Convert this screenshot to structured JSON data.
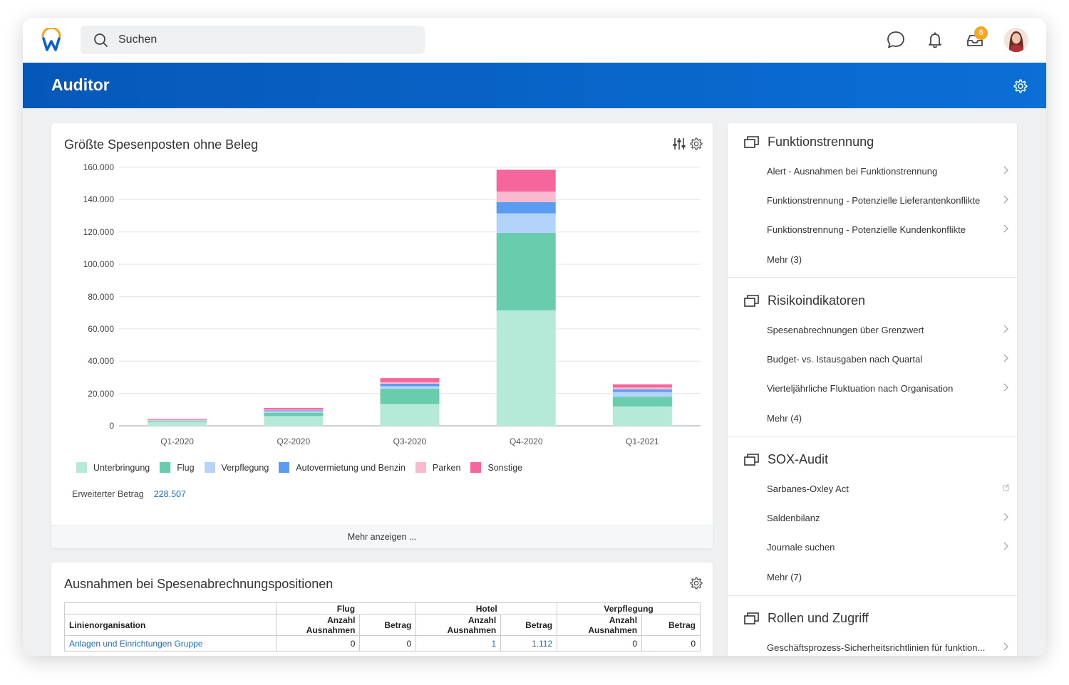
{
  "topbar": {
    "search_placeholder": "Suchen",
    "inbox_badge": "8"
  },
  "banner": {
    "title": "Auditor"
  },
  "expense_card": {
    "title": "Größte Spesenposten ohne Beleg",
    "total_label": "Erweiterter Betrag",
    "total_value": "228.507",
    "more_label": "Mehr anzeigen ..."
  },
  "chart_data": {
    "type": "bar",
    "stacked": true,
    "title": "Größte Spesenposten ohne Beleg",
    "categories": [
      "Q1-2020",
      "Q2-2020",
      "Q3-2020",
      "Q4-2020",
      "Q1-2021"
    ],
    "y_ticks": [
      "160.000",
      "140.000",
      "120.000",
      "100.000",
      "80.000",
      "60.000",
      "40.000",
      "20.000",
      "0"
    ],
    "ylim": [
      0,
      160000
    ],
    "grid": true,
    "legend_position": "bottom-left",
    "series": [
      {
        "name": "Unterbringung",
        "color": "#b5ead9",
        "values": [
          2500,
          6000,
          13500,
          71500,
          12000
        ]
      },
      {
        "name": "Flug",
        "color": "#69ccac",
        "values": [
          500,
          2000,
          9500,
          48000,
          6000
        ]
      },
      {
        "name": "Verpflegung",
        "color": "#b3d3fb",
        "values": [
          500,
          1000,
          1500,
          12000,
          3000
        ]
      },
      {
        "name": "Autovermietung und Benzin",
        "color": "#5b9cf2",
        "values": [
          0,
          500,
          1500,
          7000,
          1500
        ]
      },
      {
        "name": "Parken",
        "color": "#f9b9cf",
        "values": [
          300,
          500,
          1000,
          6500,
          1200
        ]
      },
      {
        "name": "Sonstige",
        "color": "#f5679c",
        "values": [
          500,
          1000,
          2500,
          13500,
          2000
        ]
      }
    ]
  },
  "exceptions_card": {
    "title": "Ausnahmen bei Spesenabrechnungspositionen",
    "group_headers": [
      "Flug",
      "Hotel",
      "Verpflegung"
    ],
    "columns": [
      "Linienorganisation",
      "Anzahl Ausnahmen",
      "Betrag",
      "Anzahl Ausnahmen",
      "Betrag",
      "Anzahl Ausnahmen",
      "Betrag"
    ],
    "rows": [
      [
        "Anlagen und Einrichtungen Gruppe",
        "0",
        "0",
        "1",
        "1.112",
        "0",
        "0"
      ]
    ]
  },
  "sidebar": {
    "sections": [
      {
        "title": "Funktionstrennung",
        "items": [
          "Alert - Ausnahmen bei Funktionstrennung",
          "Funktionstrennung - Potenzielle Lieferantenkonflikte",
          "Funktionstrennung - Potenzielle Kundenkonflikte"
        ],
        "more": "Mehr (3)"
      },
      {
        "title": "Risikoindikatoren",
        "items": [
          "Spesenabrechnungen über Grenzwert",
          "Budget- vs. Istausgaben nach Quartal",
          "Vierteljährliche Fluktuation nach Organisation"
        ],
        "more": "Mehr (4)"
      },
      {
        "title": "SOX-Audit",
        "items": [
          "Sarbanes-Oxley Act",
          "Saldenbilanz",
          "Journale suchen"
        ],
        "more": "Mehr (7)"
      },
      {
        "title": "Rollen und Zugriff",
        "items": [
          "Geschäftsprozess-Sicherheitsrichtlinien für funktion..."
        ]
      }
    ]
  }
}
